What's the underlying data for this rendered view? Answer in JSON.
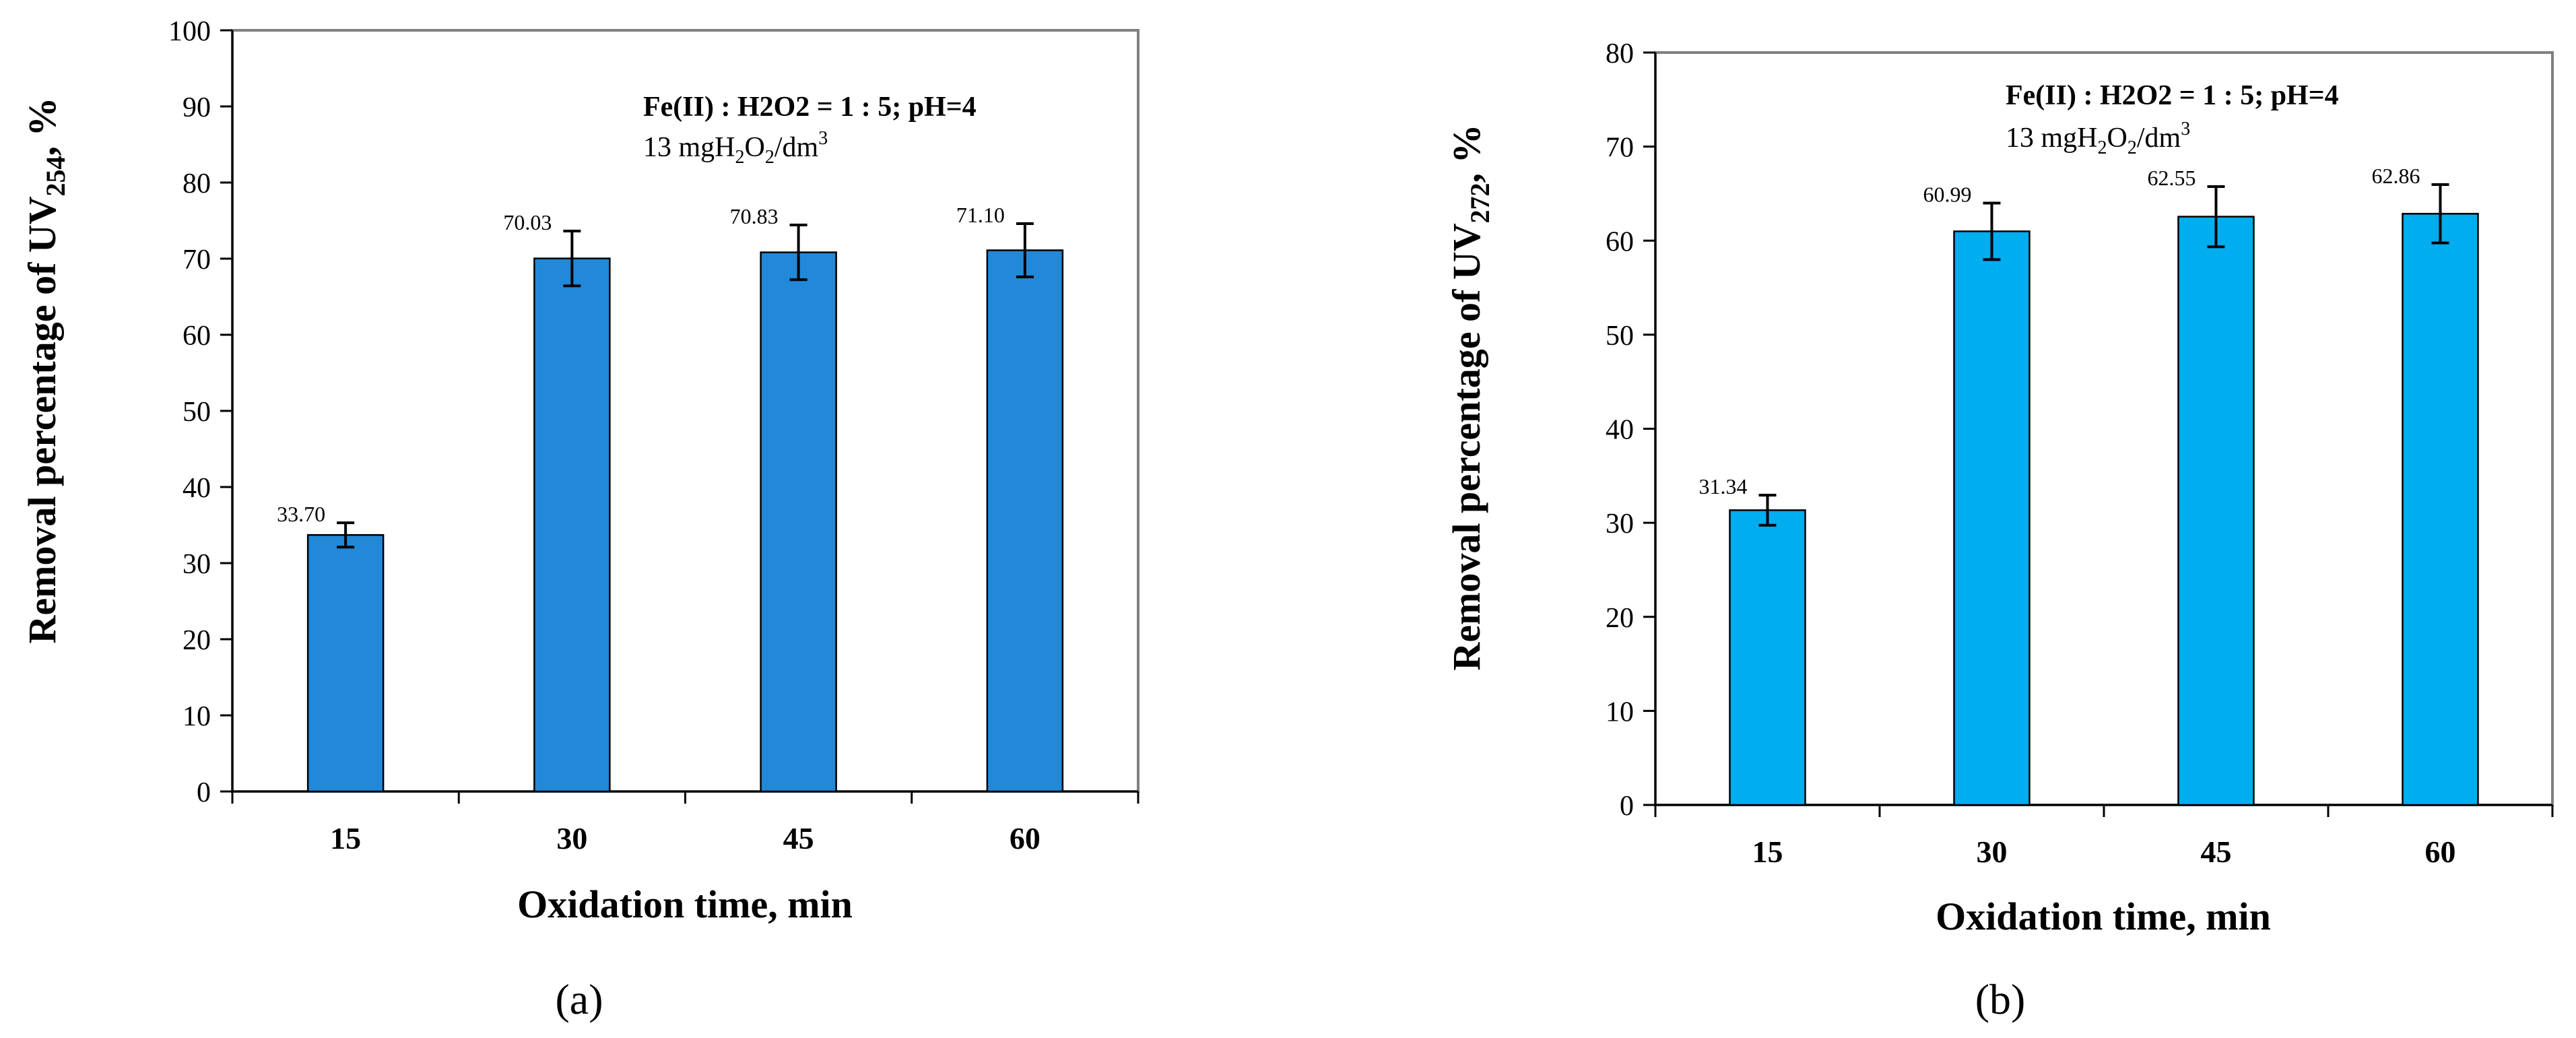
{
  "chart_data": [
    {
      "type": "bar",
      "panel_label": "(a)",
      "categories": [
        "15",
        "30",
        "45",
        "60"
      ],
      "values": [
        33.7,
        70.03,
        70.83,
        71.1
      ],
      "value_labels": [
        "33.70",
        "70.03",
        "70.83",
        "71.10"
      ],
      "error": [
        1.6,
        3.6,
        3.6,
        3.5
      ],
      "xlabel": "Oxidation time, min",
      "ylabel": {
        "prefix": "Removal percentage of  UV",
        "sub": "254",
        "suffix": ",  %"
      },
      "annotation": {
        "line1": "Fe(II) : H2O2 = 1 : 5; pH=4",
        "line2": {
          "t1": "13 mgH",
          "s1": "2",
          "t2": "O",
          "s2": "2",
          "t3": "/dm",
          "s3": "3"
        }
      },
      "ylim": [
        0,
        100
      ],
      "yticks": [
        "0",
        "10",
        "20",
        "30",
        "40",
        "50",
        "60",
        "70",
        "80",
        "90",
        "100"
      ],
      "bar_color": "#2288D8",
      "grid": false
    },
    {
      "type": "bar",
      "panel_label": "(b)",
      "categories": [
        "15",
        "30",
        "45",
        "60"
      ],
      "values": [
        31.34,
        60.99,
        62.55,
        62.86
      ],
      "value_labels": [
        "31.34",
        "60.99",
        "62.55",
        "62.86"
      ],
      "error": [
        1.6,
        3.0,
        3.2,
        3.1
      ],
      "xlabel": "Oxidation time, min",
      "ylabel": {
        "prefix": "Removal percentage of  UV",
        "sub": "272",
        "suffix": ",  %"
      },
      "annotation": {
        "line1": "Fe(II) : H2O2 = 1 : 5; pH=4",
        "line2": {
          "t1": "13 mgH",
          "s1": "2",
          "t2": "O",
          "s2": "2",
          "t3": "/dm",
          "s3": "3"
        }
      },
      "ylim": [
        0,
        80
      ],
      "yticks": [
        "0",
        "10",
        "20",
        "30",
        "40",
        "50",
        "60",
        "70",
        "80"
      ],
      "bar_color": "#00ADEF",
      "grid": false
    }
  ]
}
